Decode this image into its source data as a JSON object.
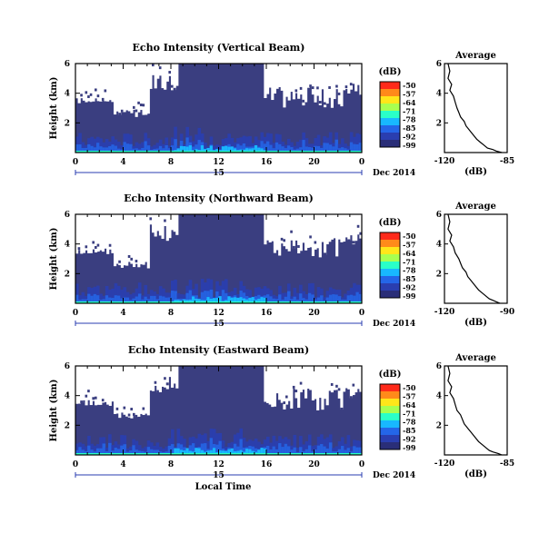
{
  "chart_data": [
    {
      "type": "heatmap",
      "title": "Echo Intensity (Vertical Beam)",
      "ylabel": "Height (km)",
      "yticks": [
        "6",
        "4",
        "2"
      ],
      "xticks": [
        "0",
        "4",
        "8",
        "12",
        "16",
        "20",
        "0"
      ],
      "xlim": [
        0,
        24
      ],
      "ylim": [
        0,
        6
      ],
      "date_day": "15",
      "date_label": "Dec 2014",
      "colorbar": {
        "unit": "(dB)",
        "labels": [
          "-50",
          "-57",
          "-64",
          "-71",
          "-78",
          "-85",
          "-92",
          "-99"
        ]
      },
      "profile": {
        "title": "Average",
        "yticks": [
          "6",
          "4",
          "2"
        ],
        "xticks": [
          "-120",
          "-85"
        ],
        "xlim": [
          -120,
          -85
        ],
        "ylim": [
          0,
          6
        ],
        "xlabel": "(dB)",
        "x": [
          -118,
          -117,
          -118,
          -116,
          -117,
          -115,
          -114,
          -113,
          -112,
          -111,
          -109,
          -108,
          -106,
          -104,
          -102,
          -100,
          -98,
          -96,
          -93,
          -91,
          -88
        ],
        "y": [
          6.0,
          5.5,
          5.0,
          4.6,
          4.2,
          3.8,
          3.4,
          3.0,
          2.7,
          2.4,
          2.1,
          1.8,
          1.5,
          1.2,
          0.9,
          0.7,
          0.5,
          0.3,
          0.2,
          0.1,
          0.0
        ]
      }
    },
    {
      "type": "heatmap",
      "title": "Echo Intensity (Northward Beam)",
      "ylabel": "Height (km)",
      "yticks": [
        "6",
        "4",
        "2"
      ],
      "xticks": [
        "0",
        "4",
        "8",
        "12",
        "16",
        "20",
        "0"
      ],
      "xlim": [
        0,
        24
      ],
      "ylim": [
        0,
        6
      ],
      "date_day": "15",
      "date_label": "Dec 2014",
      "colorbar": {
        "unit": "(dB)",
        "labels": [
          "-50",
          "-57",
          "-64",
          "-71",
          "-78",
          "-85",
          "-92",
          "-99"
        ]
      },
      "profile": {
        "title": "Average",
        "yticks": [
          "6",
          "4",
          "2"
        ],
        "xticks": [
          "-120",
          "-90"
        ],
        "xlim": [
          -120,
          -85
        ],
        "ylim": [
          0,
          6
        ],
        "xlabel": "(dB)",
        "x": [
          -118,
          -117,
          -118,
          -116,
          -117,
          -115,
          -114,
          -112,
          -111,
          -110,
          -108,
          -107,
          -105,
          -103,
          -101,
          -99,
          -97,
          -95,
          -93,
          -91,
          -89
        ],
        "y": [
          6.0,
          5.5,
          5.0,
          4.6,
          4.2,
          3.8,
          3.4,
          3.0,
          2.7,
          2.4,
          2.1,
          1.8,
          1.5,
          1.2,
          0.9,
          0.7,
          0.5,
          0.3,
          0.2,
          0.1,
          0.0
        ]
      }
    },
    {
      "type": "heatmap",
      "title": "Echo Intensity (Eastward Beam)",
      "ylabel": "Height (km)",
      "xlabel": "Local Time",
      "yticks": [
        "6",
        "4",
        "2"
      ],
      "xticks": [
        "0",
        "4",
        "8",
        "12",
        "16",
        "20",
        "0"
      ],
      "xlim": [
        0,
        24
      ],
      "ylim": [
        0,
        6
      ],
      "date_day": "15",
      "date_label": "Dec 2014",
      "colorbar": {
        "unit": "(dB)",
        "labels": [
          "-50",
          "-57",
          "-64",
          "-71",
          "-78",
          "-85",
          "-92",
          "-99"
        ]
      },
      "profile": {
        "title": "Average",
        "yticks": [
          "6",
          "4",
          "2"
        ],
        "xticks": [
          "-120",
          "-85"
        ],
        "xlim": [
          -120,
          -85
        ],
        "ylim": [
          0,
          6
        ],
        "xlabel": "(dB)",
        "x": [
          -118,
          -117,
          -118,
          -116,
          -117,
          -115,
          -114,
          -113,
          -111,
          -110,
          -109,
          -107,
          -105,
          -103,
          -101,
          -99,
          -97,
          -95,
          -93,
          -90,
          -88
        ],
        "y": [
          6.0,
          5.5,
          5.0,
          4.6,
          4.2,
          3.8,
          3.4,
          3.0,
          2.7,
          2.4,
          2.1,
          1.8,
          1.5,
          1.2,
          0.9,
          0.7,
          0.5,
          0.3,
          0.2,
          0.1,
          0.0
        ]
      }
    }
  ],
  "colors": {
    "background_echo": "#3a3e80",
    "no_data": "#ffffff",
    "colorbar": [
      "#ff2a1a",
      "#ff8a1a",
      "#ffe61a",
      "#a8ff50",
      "#2affc8",
      "#18b8ff",
      "#2466e8",
      "#2a3eb0",
      "#2a2e78"
    ]
  }
}
